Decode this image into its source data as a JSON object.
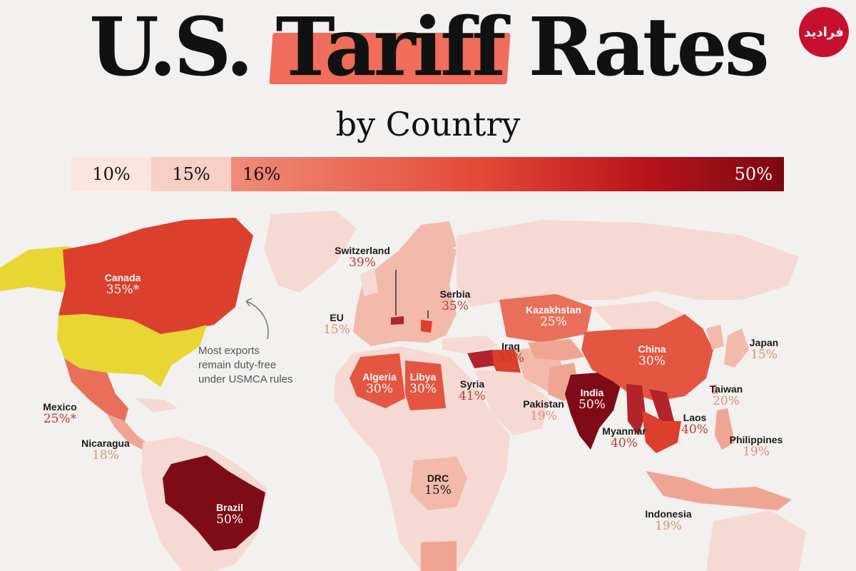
{
  "title": {
    "part1": "U.S.",
    "part2": "Tariff",
    "part3": "Rates",
    "subtitle": "by Country"
  },
  "logo": {
    "text": "فرادید"
  },
  "scale": {
    "seg1": "10%",
    "seg2": "15%",
    "seg3_start": "16%",
    "seg3_end": "50%"
  },
  "note": {
    "line1": "Most exports",
    "line2": "remain duty-free",
    "line3": "under USMCA rules"
  },
  "chart_data": {
    "type": "choropleth",
    "unit": "%",
    "countries": [
      {
        "name": "Canada",
        "rate": "35%*"
      },
      {
        "name": "Mexico",
        "rate": "25%*"
      },
      {
        "name": "Nicaragua",
        "rate": "18%"
      },
      {
        "name": "Brazil",
        "rate": "50%"
      },
      {
        "name": "Switzerland",
        "rate": "39%"
      },
      {
        "name": "EU",
        "rate": "15%"
      },
      {
        "name": "Serbia",
        "rate": "35%"
      },
      {
        "name": "Algeria",
        "rate": "30%"
      },
      {
        "name": "Libya",
        "rate": "30%"
      },
      {
        "name": "Syria",
        "rate": "41%"
      },
      {
        "name": "Iraq",
        "rate": "35%"
      },
      {
        "name": "Kazakhstan",
        "rate": "25%"
      },
      {
        "name": "China",
        "rate": "30%"
      },
      {
        "name": "India",
        "rate": "50%"
      },
      {
        "name": "Pakistan",
        "rate": "19%"
      },
      {
        "name": "Myanmar",
        "rate": "40%"
      },
      {
        "name": "Laos",
        "rate": "40%"
      },
      {
        "name": "Taiwan",
        "rate": "20%"
      },
      {
        "name": "Japan",
        "rate": "15%"
      },
      {
        "name": "Philippines",
        "rate": "19%"
      },
      {
        "name": "Indonesia",
        "rate": "19%"
      },
      {
        "name": "DRC",
        "rate": "15%"
      }
    ],
    "colors": {
      "background": "#f2f1ef",
      "no_data": "#f6d9d2",
      "usmca_exempt": "#e8d633",
      "r15": "#f3b9ab",
      "r18": "#f0a592",
      "r25": "#ea6f58",
      "r30": "#e4563f",
      "r35": "#dc3f2b",
      "r40": "#b3232b",
      "r50": "#7f0b16"
    }
  }
}
